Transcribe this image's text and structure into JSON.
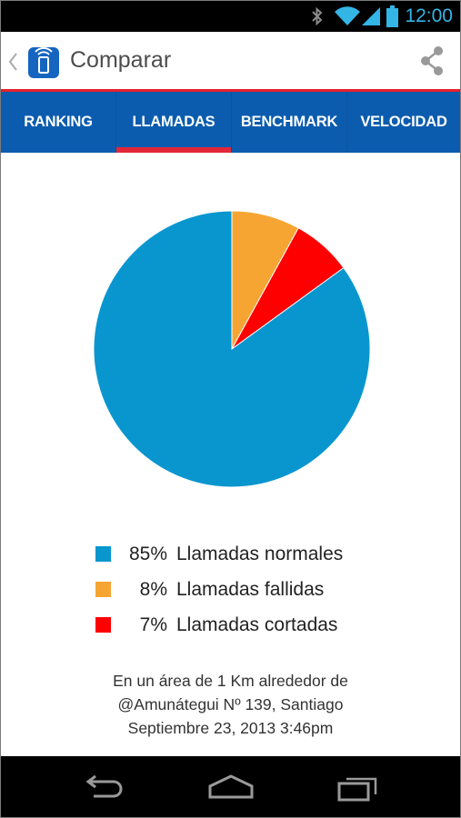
{
  "status_bar": {
    "time": "12:00",
    "icons": [
      "bluetooth-icon",
      "wifi-icon",
      "cell-signal-icon",
      "battery-icon"
    ],
    "accent_color": "#33b5e5"
  },
  "action_bar": {
    "title": "Comparar",
    "app_icon": "phone-signal-icon",
    "share_icon": "share-icon",
    "accent_color": "#e8202a"
  },
  "tabs": [
    {
      "label": "RANKING",
      "active": false
    },
    {
      "label": "LLAMADAS",
      "active": true
    },
    {
      "label": "BENCHMARK",
      "active": false
    },
    {
      "label": "VELOCIDAD",
      "active": false
    }
  ],
  "chart_data": {
    "type": "pie",
    "title": "",
    "categories": [
      "Llamadas normales",
      "Llamadas fallidas",
      "Llamadas cortadas"
    ],
    "values": [
      85,
      8,
      7
    ],
    "colors": [
      "#0996cf",
      "#f7a532",
      "#ff0000"
    ],
    "labels": [
      "85%",
      "8%",
      "7%"
    ],
    "legend_position": "bottom"
  },
  "caption": {
    "line1": "En un área de 1 Km alrededor de",
    "line2": "@Amunátegui Nº 139, Santiago",
    "line3": "Septiembre 23, 2013 3:46pm"
  },
  "nav_bar": {
    "buttons": [
      "back-icon",
      "home-icon",
      "recent-apps-icon"
    ]
  }
}
